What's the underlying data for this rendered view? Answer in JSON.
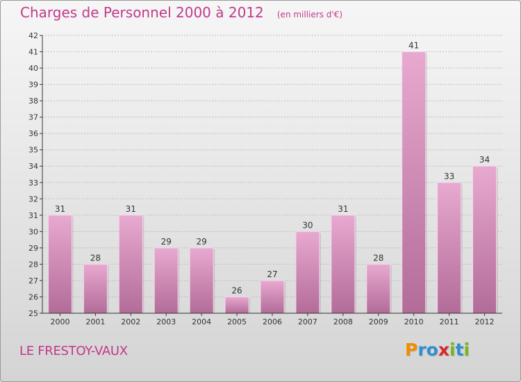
{
  "header": {
    "title": "Charges de Personnel 2000 à 2012",
    "subtitle": "(en milliers d'€)"
  },
  "footer": {
    "commune": "LE FRESTOY-VAUX",
    "logo_text": "Proxiti",
    "logo_letter_colors": [
      "#f28c00",
      "#2e8fd0",
      "#2e8fd0",
      "#d7262b",
      "#7cb41c",
      "#2e8fd0",
      "#7cb41c"
    ]
  },
  "colors": {
    "title": "#c0398a",
    "bar_top": "#e8a9d0",
    "bar_bottom": "#b26c98",
    "axis": "#333333"
  },
  "chart_data": {
    "type": "bar",
    "categories": [
      "2000",
      "2001",
      "2002",
      "2003",
      "2004",
      "2005",
      "2006",
      "2007",
      "2008",
      "2009",
      "2010",
      "2011",
      "2012"
    ],
    "values": [
      31,
      28,
      31,
      29,
      29,
      26,
      27,
      30,
      31,
      28,
      41,
      33,
      34
    ],
    "ylim": [
      25,
      42
    ],
    "yticks": [
      25,
      26,
      27,
      28,
      29,
      30,
      31,
      32,
      33,
      34,
      35,
      36,
      37,
      38,
      39,
      40,
      41,
      42
    ],
    "grid": true,
    "data_labels": true
  }
}
